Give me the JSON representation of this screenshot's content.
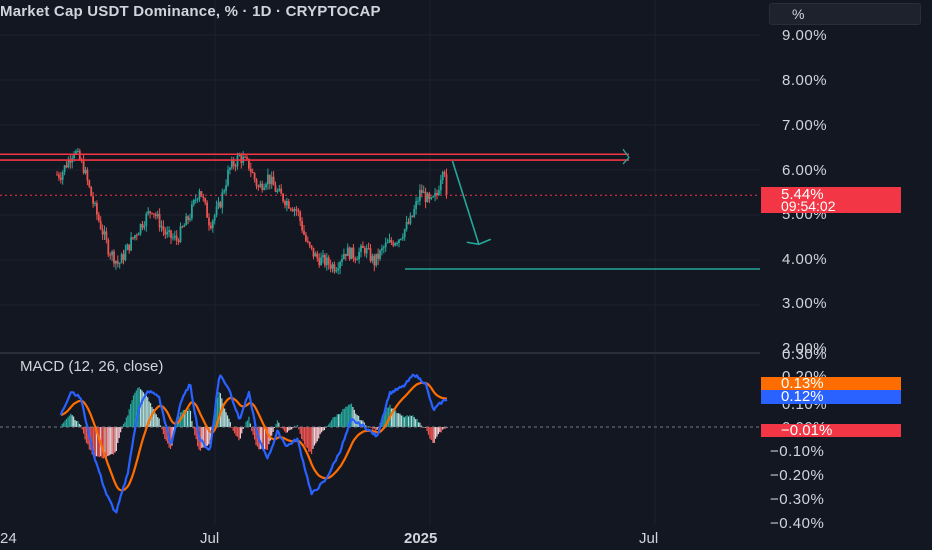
{
  "header": {
    "title": "Market Cap USDT Dominance, % · 1D · CRYPTOCAP",
    "unit_button": "%"
  },
  "price_axis": [
    "9.00%",
    "8.00%",
    "7.00%",
    "6.00%",
    "5.00%",
    "4.00%",
    "3.00%",
    "2.00%"
  ],
  "macd_axis": [
    "0.30%",
    "0.20%",
    "0.10%",
    "0.00%",
    "−0.10%",
    "−0.20%",
    "−0.30%",
    "−0.40%"
  ],
  "time_axis": [
    "24",
    "Jul",
    "2025",
    "Jul"
  ],
  "badges": {
    "last_price": "5.44%",
    "countdown": "09:54:02",
    "signal": "0.13%",
    "macd": "0.12%",
    "histogram": "−0.01%"
  },
  "indicator": {
    "label": "MACD (12, 26, close)"
  },
  "colors": {
    "background": "#131722",
    "up": "#26a69a",
    "down": "#ef5350",
    "resistance": "#f23645",
    "support": "#26a69a",
    "macd_line": "#2962ff",
    "signal_line": "#ff6d00"
  },
  "chart_data": [
    {
      "type": "candlestick",
      "title": "Market Cap USDT Dominance, % · 1D · CRYPTOCAP",
      "ylim": [
        2,
        9.6
      ],
      "y_ticks": [
        9,
        8,
        7,
        6,
        5,
        4,
        3,
        2
      ],
      "x_labels": [
        "24",
        "Jul",
        "2025",
        "Jul"
      ],
      "close_path": [
        [
          "2024-03-01",
          5.9
        ],
        [
          "2024-03-15",
          6.45
        ],
        [
          "2024-03-25",
          6.05
        ],
        [
          "2024-04-05",
          5.2
        ],
        [
          "2024-04-20",
          4.25
        ],
        [
          "2024-05-01",
          3.9
        ],
        [
          "2024-05-15",
          4.45
        ],
        [
          "2024-05-25",
          4.8
        ],
        [
          "2024-06-05",
          5.15
        ],
        [
          "2024-06-20",
          4.55
        ],
        [
          "2024-07-01",
          4.45
        ],
        [
          "2024-07-15",
          5.0
        ],
        [
          "2024-07-25",
          5.6
        ],
        [
          "2024-08-05",
          4.8
        ],
        [
          "2024-08-15",
          5.2
        ],
        [
          "2024-08-25",
          6.0
        ],
        [
          "2024-09-05",
          6.3
        ],
        [
          "2024-09-15",
          6.1
        ],
        [
          "2024-09-25",
          5.6
        ],
        [
          "2024-10-05",
          5.85
        ],
        [
          "2024-10-15",
          5.5
        ],
        [
          "2024-10-25",
          5.3
        ],
        [
          "2024-11-05",
          5.1
        ],
        [
          "2024-11-15",
          4.35
        ],
        [
          "2024-11-25",
          4.05
        ],
        [
          "2024-12-05",
          3.95
        ],
        [
          "2024-12-15",
          3.85
        ],
        [
          "2024-12-25",
          4.2
        ],
        [
          "2025-01-05",
          4.1
        ],
        [
          "2025-01-15",
          4.25
        ],
        [
          "2025-01-25",
          3.95
        ],
        [
          "2025-02-05",
          4.3
        ],
        [
          "2025-02-20",
          4.5
        ],
        [
          "2025-03-05",
          4.9
        ],
        [
          "2025-03-15",
          5.55
        ],
        [
          "2025-03-25",
          5.25
        ],
        [
          "2025-04-01",
          5.45
        ],
        [
          "2025-04-08",
          6.2
        ],
        [
          "2025-04-12",
          5.44
        ]
      ],
      "last_value": 5.44,
      "annotations": [
        {
          "kind": "horizontal_line",
          "label": "resistance",
          "value": 6.35,
          "color": "#f23645"
        },
        {
          "kind": "horizontal_line",
          "label": "resistance",
          "value": 6.22,
          "color": "#f23645"
        },
        {
          "kind": "horizontal_line",
          "label": "support",
          "value": 3.8,
          "color": "#26a69a"
        },
        {
          "kind": "arrow",
          "label": "projected drop",
          "from": [
            "2025-04-12",
            6.2
          ],
          "to": [
            "2025-05-15",
            4.35
          ],
          "color": "#26a69a"
        }
      ]
    },
    {
      "type": "line",
      "title": "MACD (12, 26, close)",
      "ylim": [
        -0.41,
        0.31
      ],
      "y_ticks": [
        0.3,
        0.2,
        0.1,
        0.0,
        -0.1,
        -0.2,
        -0.3,
        -0.4
      ],
      "series": [
        {
          "name": "MACD",
          "color": "#2962ff",
          "last": 0.12
        },
        {
          "name": "Signal",
          "color": "#ff6d00",
          "last": 0.13
        },
        {
          "name": "Histogram",
          "last": -0.01
        }
      ],
      "macd_path": [
        [
          "2024-03-01",
          0.05
        ],
        [
          "2024-03-12",
          0.15
        ],
        [
          "2024-03-22",
          0.12
        ],
        [
          "2024-04-05",
          -0.12
        ],
        [
          "2024-04-18",
          -0.28
        ],
        [
          "2024-04-28",
          -0.36
        ],
        [
          "2024-05-10",
          -0.2
        ],
        [
          "2024-05-22",
          0.08
        ],
        [
          "2024-06-01",
          0.15
        ],
        [
          "2024-06-12",
          0.13
        ],
        [
          "2024-06-25",
          -0.08
        ],
        [
          "2024-07-05",
          0.1
        ],
        [
          "2024-07-15",
          0.18
        ],
        [
          "2024-07-25",
          -0.05
        ],
        [
          "2024-08-05",
          -0.1
        ],
        [
          "2024-08-15",
          0.22
        ],
        [
          "2024-08-25",
          0.16
        ],
        [
          "2024-09-05",
          0.03
        ],
        [
          "2024-09-15",
          0.14
        ],
        [
          "2024-09-25",
          -0.05
        ],
        [
          "2024-10-05",
          -0.13
        ],
        [
          "2024-10-15",
          -0.02
        ],
        [
          "2024-10-25",
          -0.08
        ],
        [
          "2024-11-05",
          -0.05
        ],
        [
          "2024-11-20",
          -0.28
        ],
        [
          "2024-12-05",
          -0.22
        ],
        [
          "2024-12-20",
          -0.1
        ],
        [
          "2025-01-01",
          0.03
        ],
        [
          "2025-01-15",
          0.0
        ],
        [
          "2025-01-28",
          -0.04
        ],
        [
          "2025-02-10",
          0.14
        ],
        [
          "2025-02-25",
          0.17
        ],
        [
          "2025-03-08",
          0.22
        ],
        [
          "2025-03-20",
          0.18
        ],
        [
          "2025-03-28",
          0.07
        ],
        [
          "2025-04-05",
          0.1
        ],
        [
          "2025-04-12",
          0.12
        ]
      ]
    }
  ]
}
